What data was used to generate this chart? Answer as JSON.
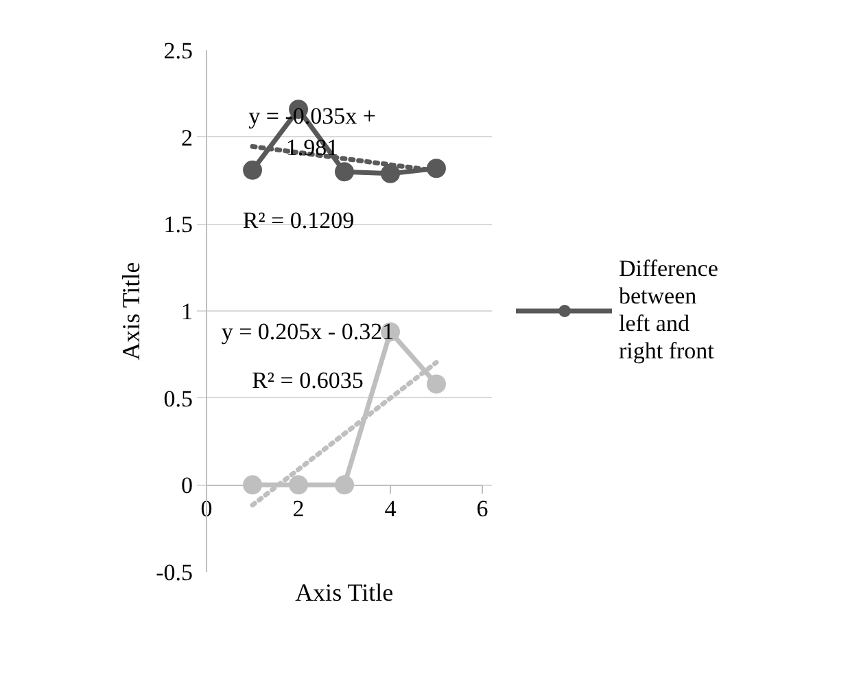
{
  "chart_data": {
    "type": "line",
    "xlabel": "Axis Title",
    "ylabel": "Axis Title",
    "x": [
      1,
      2,
      3,
      4,
      5
    ],
    "series": [
      {
        "name": "Difference between left and right front",
        "color": "#595959",
        "values": [
          1.81,
          2.16,
          1.8,
          1.79,
          1.82
        ],
        "marker": "circle"
      },
      {
        "color": "#bfbfbf",
        "values": [
          0,
          0,
          0,
          0.88,
          0.58
        ],
        "marker": "circle"
      },
      {
        "color": "#595959",
        "values": [
          1.946,
          1.911,
          1.876,
          1.841,
          1.806
        ],
        "line_style": "dotted",
        "marker": "none"
      },
      {
        "color": "#bfbfbf",
        "values": [
          -0.116,
          0.089,
          0.294,
          0.499,
          0.704
        ],
        "line_style": "dotted",
        "marker": "none"
      }
    ],
    "xlim": [
      0,
      6
    ],
    "xticks": [
      0,
      2,
      4,
      6
    ],
    "ylim": [
      -0.5,
      2.5
    ],
    "yticks": [
      -0.5,
      0,
      0.5,
      1,
      1.5,
      2,
      2.5
    ],
    "grid": "y",
    "legend": "right",
    "annotations": [
      "y = -0.035x +\n1.981",
      "R² = 0.1209",
      "y = 0.205x - 0.321",
      "R² = 0.6035"
    ]
  }
}
